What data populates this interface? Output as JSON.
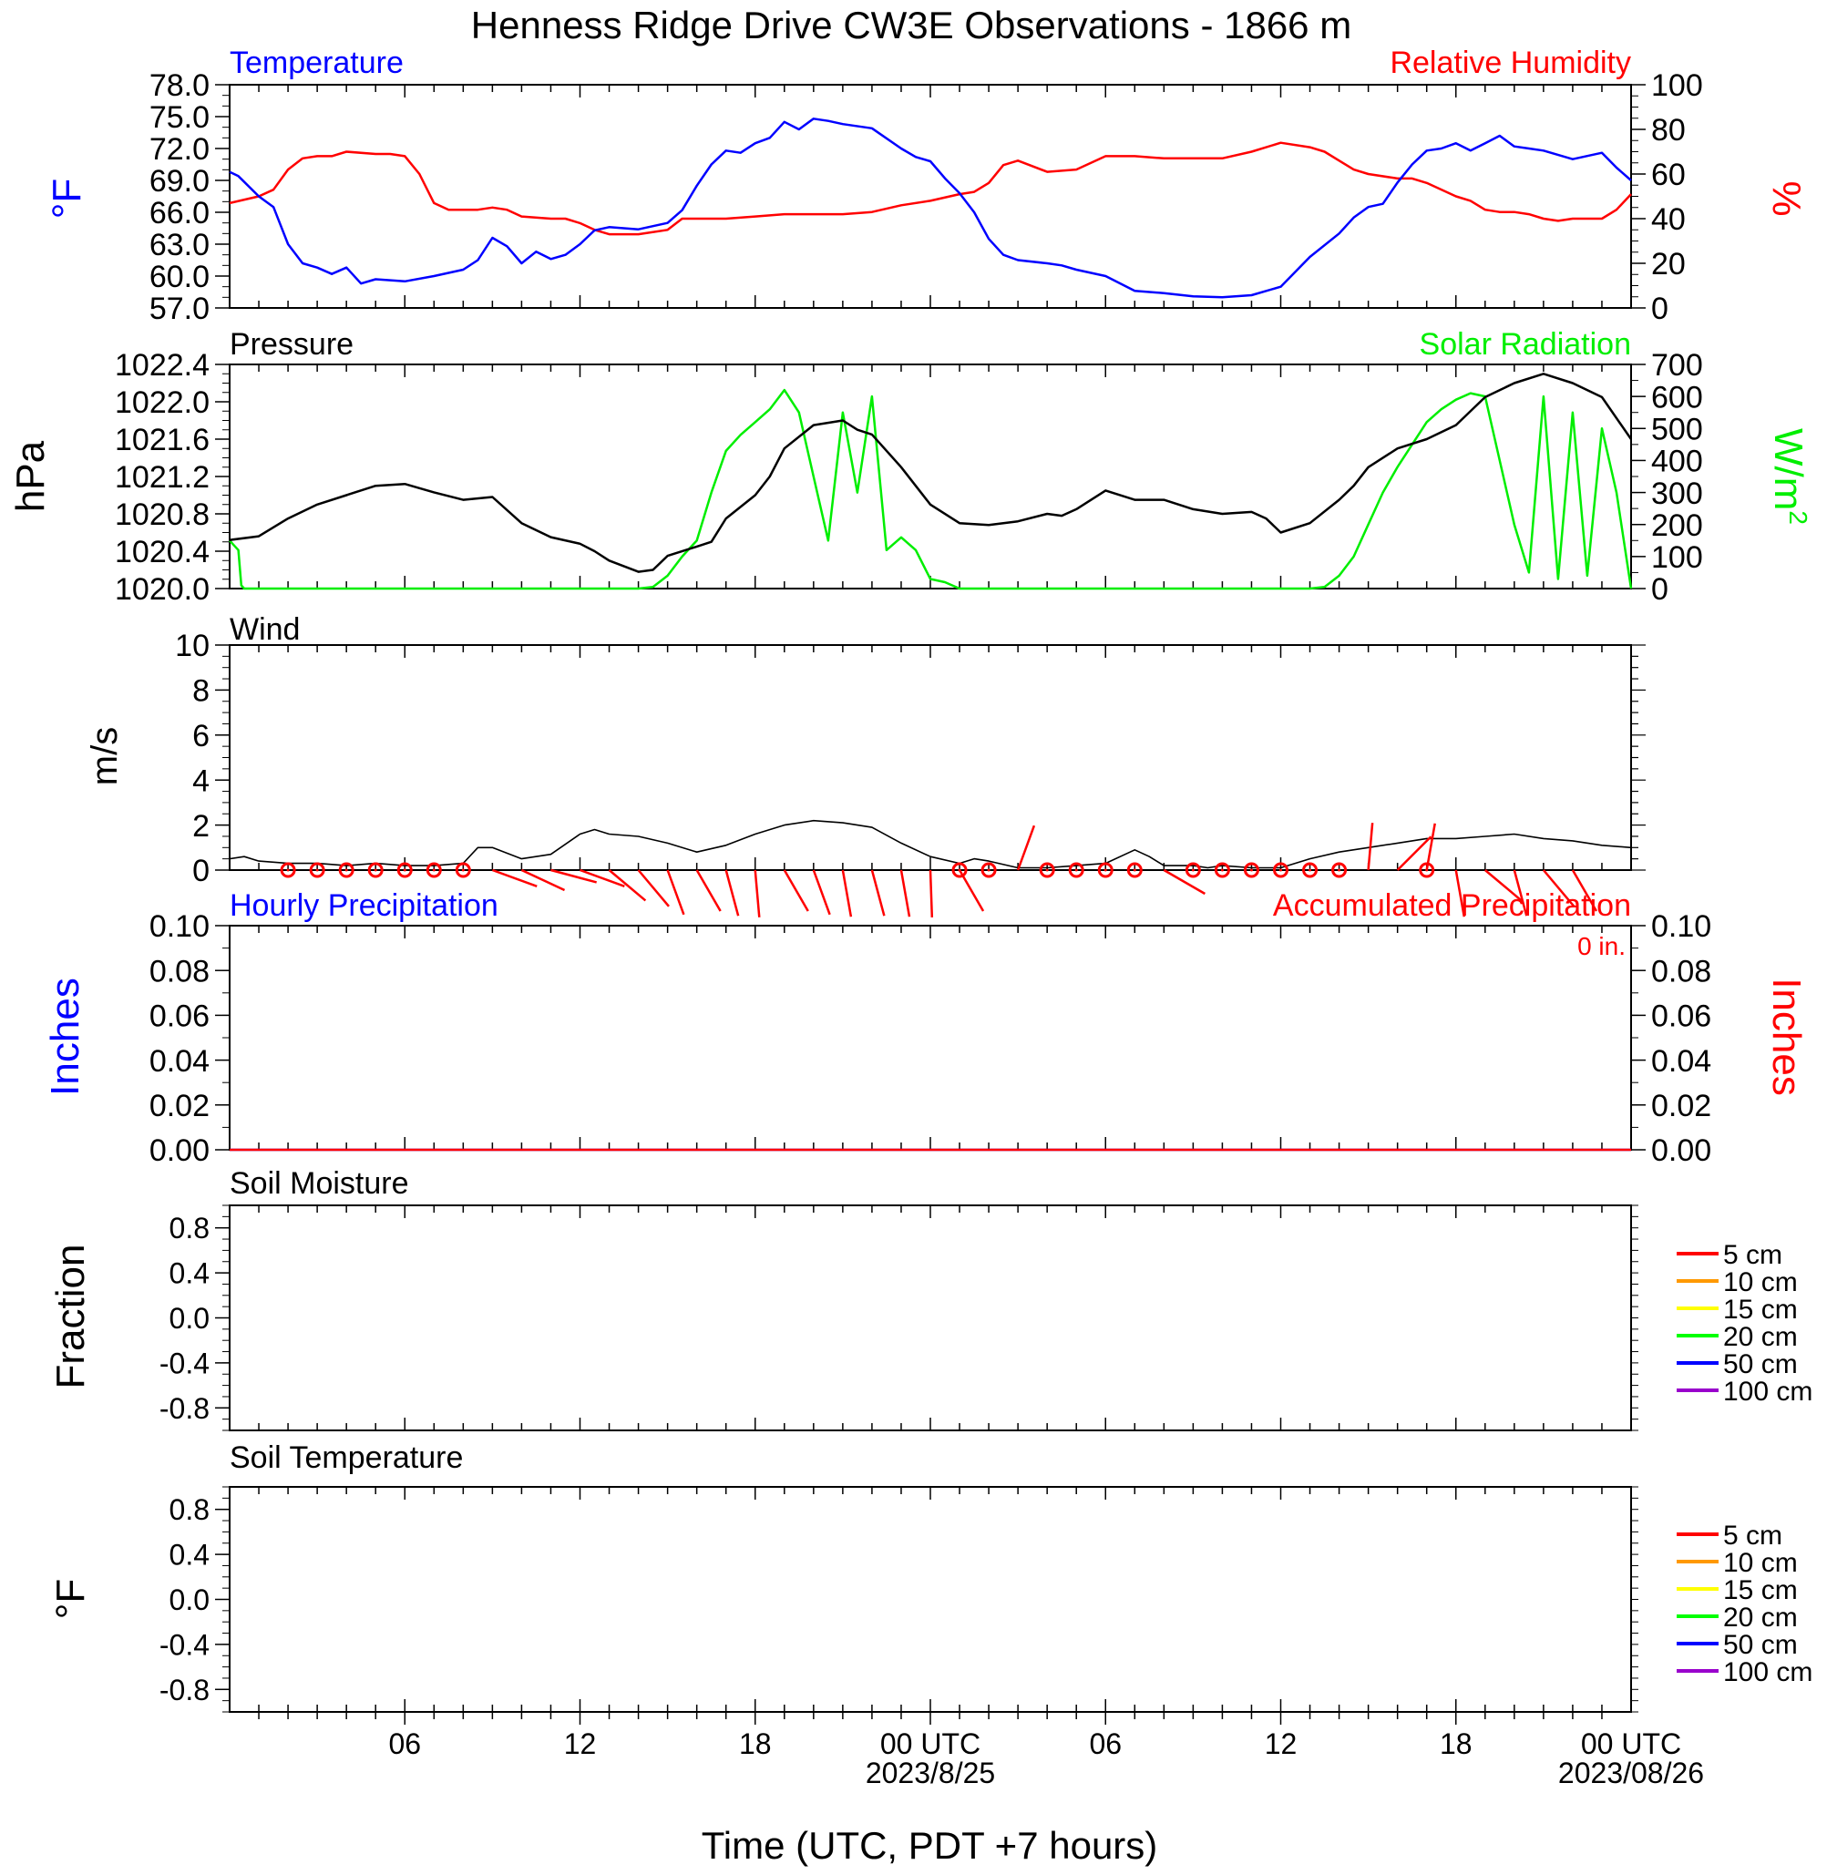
{
  "title": "Henness Ridge Drive CW3E Observations - 1866 m",
  "x_axis": {
    "label": "Time (UTC, PDT +7 hours)",
    "range_hours": [
      0,
      48
    ],
    "tick_hours": [
      6,
      12,
      18,
      24,
      30,
      36,
      42,
      48
    ],
    "tick_labels": [
      "06",
      "12",
      "18",
      "00 UTC",
      "06",
      "12",
      "18",
      "00 UTC"
    ],
    "date_labels": [
      {
        "hour": 24,
        "text": "2023/8/25"
      },
      {
        "hour": 48,
        "text": "2023/08/26"
      }
    ]
  },
  "colors": {
    "temperature": "#0000ff",
    "humidity": "#ff0000",
    "pressure": "#000000",
    "solar": "#00ee00",
    "wind": "#000000",
    "barb": "#ff0000"
  },
  "chart_data": [
    {
      "type": "line",
      "panel": "temperature-humidity",
      "left_title": "Temperature",
      "right_title": "Relative Humidity",
      "left_unit": "°F",
      "right_unit": "%",
      "left_ylim": [
        57,
        78
      ],
      "left_ticks": [
        "78.0",
        "75.0",
        "72.0",
        "69.0",
        "66.0",
        "63.0",
        "60.0",
        "57.0"
      ],
      "right_ylim": [
        0,
        100
      ],
      "right_ticks": [
        "100",
        "80",
        "60",
        "40",
        "20",
        "0"
      ],
      "series": [
        {
          "name": "Temperature",
          "axis": "left",
          "x": [
            0,
            0.3,
            1,
            1.5,
            2,
            2.5,
            3,
            3.5,
            4,
            4.5,
            5,
            6,
            7,
            8,
            8.5,
            9,
            9.5,
            10,
            10.5,
            11,
            11.5,
            12,
            12.5,
            13,
            14,
            15,
            15.5,
            16,
            16.5,
            17,
            17.5,
            18,
            18.5,
            19,
            19.5,
            20,
            20.5,
            21,
            22,
            23,
            23.5,
            24,
            24.5,
            25,
            25.5,
            26,
            26.5,
            27,
            28,
            28.5,
            29,
            30,
            31,
            32,
            33,
            34,
            35,
            36,
            37,
            38,
            38.5,
            39,
            39.5,
            40,
            40.5,
            41,
            41.5,
            42,
            42.5,
            43,
            43.5,
            44,
            44.5,
            45,
            46,
            47,
            47.5,
            48
          ],
          "values": [
            69.8,
            69.4,
            67.5,
            66.5,
            63.0,
            61.2,
            60.8,
            60.2,
            60.8,
            59.3,
            59.7,
            59.5,
            60.0,
            60.6,
            61.5,
            63.6,
            62.8,
            61.2,
            62.3,
            61.6,
            62.0,
            63.0,
            64.3,
            64.6,
            64.4,
            65.0,
            66.2,
            68.5,
            70.5,
            71.8,
            71.6,
            72.5,
            73.0,
            74.5,
            73.8,
            74.8,
            74.6,
            74.3,
            73.9,
            72.0,
            71.2,
            70.8,
            69.2,
            67.8,
            66.0,
            63.5,
            62.0,
            61.5,
            61.2,
            61.0,
            60.6,
            60.0,
            58.6,
            58.4,
            58.1,
            58.0,
            58.2,
            59.0,
            61.8,
            64.0,
            65.5,
            66.5,
            66.8,
            68.8,
            70.5,
            71.8,
            72.0,
            72.5,
            71.8,
            72.5,
            73.2,
            72.2,
            72.0,
            71.8,
            71.0,
            71.6,
            70.2,
            69.0
          ]
        },
        {
          "name": "Relative Humidity",
          "axis": "right",
          "x": [
            0,
            1,
            1.5,
            2,
            2.5,
            3,
            3.5,
            4,
            5,
            5.5,
            6,
            6.5,
            7,
            7.5,
            8,
            8.5,
            9,
            9.5,
            10,
            11,
            11.5,
            12,
            12.5,
            13,
            14,
            15,
            15.5,
            16,
            17,
            18,
            19,
            20,
            21,
            22,
            23,
            24,
            25,
            25.5,
            26,
            26.5,
            27,
            28,
            29,
            30,
            31,
            32,
            33,
            34,
            35,
            36,
            37,
            37.5,
            38,
            38.5,
            39,
            40,
            40.5,
            41,
            42,
            42.5,
            43,
            43.5,
            44,
            44.5,
            45,
            45.5,
            46,
            47,
            47.5,
            48
          ],
          "values": [
            47,
            50,
            53,
            62,
            67,
            68,
            68,
            70,
            69,
            69,
            68,
            60,
            47,
            44,
            44,
            44,
            45,
            44,
            41,
            40,
            40,
            38,
            35,
            33,
            33,
            35,
            40,
            40,
            40,
            41,
            42,
            42,
            42,
            43,
            46,
            48,
            51,
            52,
            56,
            64,
            66,
            61,
            62,
            68,
            68,
            67,
            67,
            67,
            70,
            74,
            72,
            70,
            66,
            62,
            60,
            58,
            58,
            56,
            50,
            48,
            44,
            43,
            43,
            42,
            40,
            39,
            40,
            40,
            44,
            51
          ]
        }
      ]
    },
    {
      "type": "line",
      "panel": "pressure-solar",
      "left_title": "Pressure",
      "right_title": "Solar Radiation",
      "left_unit": "hPa",
      "right_unit": "W/m",
      "right_unit_sup": "2",
      "left_ylim": [
        1020.0,
        1022.4
      ],
      "left_ticks": [
        "1022.4",
        "1022.0",
        "1021.6",
        "1021.2",
        "1020.8",
        "1020.4",
        "1020.0"
      ],
      "right_ylim": [
        0,
        700
      ],
      "right_ticks": [
        "700",
        "600",
        "500",
        "400",
        "300",
        "200",
        "100",
        "0"
      ],
      "series": [
        {
          "name": "Pressure",
          "axis": "left",
          "x": [
            0,
            1,
            2,
            3,
            4,
            5,
            6,
            7,
            8,
            9,
            10,
            11,
            12,
            12.5,
            13,
            14,
            14.5,
            15,
            16,
            16.5,
            17,
            18,
            18.5,
            19,
            20,
            21,
            21.5,
            22,
            23,
            24,
            25,
            26,
            27,
            28,
            28.5,
            29,
            30,
            31,
            32,
            33,
            34,
            35,
            35.5,
            36,
            37,
            38,
            38.5,
            39,
            40,
            41,
            42,
            43,
            44,
            45,
            46,
            47,
            48
          ],
          "values": [
            1020.52,
            1020.56,
            1020.75,
            1020.9,
            1021.0,
            1021.1,
            1021.12,
            1021.03,
            1020.95,
            1020.98,
            1020.7,
            1020.55,
            1020.48,
            1020.4,
            1020.3,
            1020.18,
            1020.2,
            1020.35,
            1020.45,
            1020.5,
            1020.75,
            1021.0,
            1021.2,
            1021.5,
            1021.75,
            1021.8,
            1021.7,
            1021.65,
            1021.3,
            1020.9,
            1020.7,
            1020.68,
            1020.72,
            1020.8,
            1020.78,
            1020.85,
            1021.05,
            1020.95,
            1020.95,
            1020.85,
            1020.8,
            1020.82,
            1020.75,
            1020.6,
            1020.7,
            1020.95,
            1021.1,
            1021.3,
            1021.5,
            1021.6,
            1021.75,
            1022.05,
            1022.2,
            1022.3,
            1022.2,
            1022.05,
            1021.6
          ]
        },
        {
          "name": "Solar Radiation",
          "axis": "right",
          "x": [
            0,
            0.1,
            0.3,
            0.4,
            0.5,
            1,
            5,
            10,
            13,
            14,
            14.5,
            15,
            15.5,
            16,
            16.5,
            17,
            17.5,
            18,
            18.5,
            19,
            19.5,
            20,
            20.5,
            21,
            21.5,
            22,
            22.5,
            23,
            23.5,
            24,
            24.5,
            25,
            25.5,
            26,
            30,
            35,
            37,
            37.5,
            38,
            38.5,
            39,
            39.5,
            40,
            40.5,
            41,
            41.5,
            42,
            42.5,
            43,
            43.5,
            44,
            44.5,
            45,
            45.5,
            46,
            46.5,
            47,
            47.5,
            48
          ],
          "values": [
            150,
            140,
            120,
            10,
            0,
            0,
            0,
            0,
            0,
            0,
            5,
            40,
            100,
            150,
            300,
            430,
            480,
            520,
            560,
            620,
            550,
            350,
            150,
            550,
            300,
            600,
            120,
            160,
            120,
            30,
            20,
            0,
            0,
            0,
            0,
            0,
            0,
            5,
            40,
            100,
            200,
            300,
            380,
            450,
            520,
            560,
            590,
            610,
            600,
            400,
            200,
            50,
            600,
            30,
            550,
            40,
            500,
            300,
            0
          ]
        }
      ]
    },
    {
      "type": "line",
      "panel": "wind",
      "title": "Wind",
      "unit": "m/s",
      "ylim": [
        0,
        10
      ],
      "ticks": [
        "10",
        "8",
        "6",
        "4",
        "2",
        "0"
      ],
      "series": [
        {
          "name": "Wind",
          "x": [
            0,
            0.5,
            1,
            2,
            3,
            4,
            5,
            6,
            7,
            8,
            8.5,
            9,
            10,
            11,
            12,
            12.5,
            13,
            14,
            15,
            16,
            17,
            18,
            19,
            20,
            21,
            22,
            23,
            24,
            25,
            25.5,
            26,
            27,
            28,
            29,
            30,
            31,
            31.5,
            32,
            33,
            33.5,
            34,
            35,
            36,
            37,
            38,
            39,
            40,
            41,
            42,
            43,
            44,
            45,
            46,
            47,
            48
          ],
          "values": [
            0.5,
            0.6,
            0.4,
            0.3,
            0.3,
            0.2,
            0.3,
            0.2,
            0.2,
            0.3,
            1.0,
            1.0,
            0.5,
            0.7,
            1.6,
            1.8,
            1.6,
            1.5,
            1.2,
            0.8,
            1.1,
            1.6,
            2.0,
            2.2,
            2.1,
            1.9,
            1.2,
            0.6,
            0.3,
            0.5,
            0.4,
            0.1,
            0.1,
            0.2,
            0.3,
            0.9,
            0.6,
            0.2,
            0.2,
            0.1,
            0.2,
            0.1,
            0.1,
            0.5,
            0.8,
            1.0,
            1.2,
            1.4,
            1.4,
            1.5,
            1.6,
            1.4,
            1.3,
            1.1,
            1.0
          ]
        }
      ],
      "calm_hours": [
        2,
        3,
        4,
        5,
        6,
        7,
        8,
        25,
        26,
        28,
        29,
        30,
        31,
        33,
        34,
        35,
        36,
        37,
        38,
        41
      ],
      "barbs": [
        {
          "hour": 9,
          "angle": 20
        },
        {
          "hour": 10,
          "angle": 25
        },
        {
          "hour": 11,
          "angle": 15
        },
        {
          "hour": 12,
          "angle": 20
        },
        {
          "hour": 13,
          "angle": 40
        },
        {
          "hour": 14,
          "angle": 50
        },
        {
          "hour": 15,
          "angle": 70
        },
        {
          "hour": 16,
          "angle": 60
        },
        {
          "hour": 17,
          "angle": 75
        },
        {
          "hour": 18,
          "angle": 85
        },
        {
          "hour": 19,
          "angle": 60
        },
        {
          "hour": 20,
          "angle": 70
        },
        {
          "hour": 21,
          "angle": 80
        },
        {
          "hour": 22,
          "angle": 75
        },
        {
          "hour": 23,
          "angle": 80
        },
        {
          "hour": 24,
          "angle": 88
        },
        {
          "hour": 25,
          "angle": 60
        },
        {
          "hour": 27,
          "angle": -70
        },
        {
          "hour": 32,
          "angle": 30
        },
        {
          "hour": 39,
          "angle": -85
        },
        {
          "hour": 40,
          "angle": -45
        },
        {
          "hour": 41,
          "angle": -80
        },
        {
          "hour": 42,
          "angle": 80
        },
        {
          "hour": 43,
          "angle": 40
        },
        {
          "hour": 44,
          "angle": 75
        },
        {
          "hour": 45,
          "angle": 50
        },
        {
          "hour": 46,
          "angle": 60
        }
      ]
    },
    {
      "type": "line",
      "panel": "precipitation",
      "left_title": "Hourly Precipitation",
      "right_title": "Accumulated Precipitation",
      "accumulated_text": "0 in.",
      "left_unit": "Inches",
      "right_unit": "Inches",
      "ylim": [
        0,
        0.1
      ],
      "ticks": [
        "0.10",
        "0.08",
        "0.06",
        "0.04",
        "0.02",
        "0.00"
      ],
      "series": [
        {
          "name": "Hourly Precipitation",
          "x": [
            0,
            48
          ],
          "values": [
            0,
            0
          ]
        },
        {
          "name": "Accumulated Precipitation",
          "x": [
            0,
            48
          ],
          "values": [
            0,
            0
          ]
        }
      ]
    },
    {
      "type": "line",
      "panel": "soil-moisture",
      "title": "Soil Moisture",
      "unit": "Fraction",
      "ylim": [
        -1,
        1
      ],
      "ticks": [
        "0.8",
        "0.4",
        "0.0",
        "-0.4",
        "-0.8"
      ],
      "legend": [
        {
          "label": "5 cm",
          "color": "#ff0000"
        },
        {
          "label": "10 cm",
          "color": "#ff9900"
        },
        {
          "label": "15 cm",
          "color": "#ffff00"
        },
        {
          "label": "20 cm",
          "color": "#00ff00"
        },
        {
          "label": "50 cm",
          "color": "#0000ff"
        },
        {
          "label": "100 cm",
          "color": "#9900cc"
        }
      ],
      "series": []
    },
    {
      "type": "line",
      "panel": "soil-temperature",
      "title": "Soil Temperature",
      "unit": "°F",
      "ylim": [
        -1,
        1
      ],
      "ticks": [
        "0.8",
        "0.4",
        "0.0",
        "-0.4",
        "-0.8"
      ],
      "legend": [
        {
          "label": "5 cm",
          "color": "#ff0000"
        },
        {
          "label": "10 cm",
          "color": "#ff9900"
        },
        {
          "label": "15 cm",
          "color": "#ffff00"
        },
        {
          "label": "20 cm",
          "color": "#00ff00"
        },
        {
          "label": "50 cm",
          "color": "#0000ff"
        },
        {
          "label": "100 cm",
          "color": "#9900cc"
        }
      ],
      "series": []
    }
  ]
}
